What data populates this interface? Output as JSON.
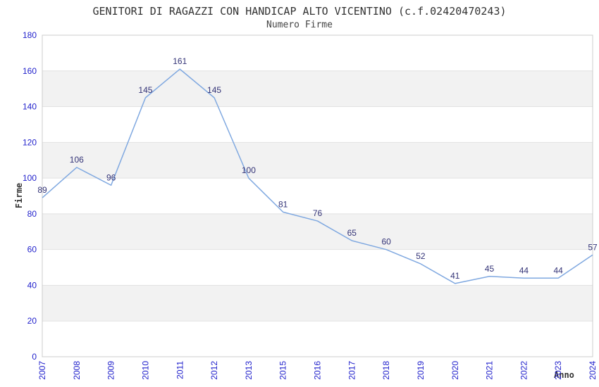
{
  "chart_data": {
    "type": "line",
    "title": "GENITORI DI RAGAZZI CON HANDICAP ALTO VICENTINO (c.f.02420470243)",
    "subtitle": "Numero Firme",
    "xlabel": "Anno",
    "ylabel": "Firme",
    "categories": [
      "2007",
      "2008",
      "2009",
      "2010",
      "2011",
      "2012",
      "2013",
      "2015",
      "2016",
      "2017",
      "2018",
      "2019",
      "2020",
      "2021",
      "2022",
      "2023",
      "2024"
    ],
    "values": [
      89,
      106,
      96,
      145,
      161,
      145,
      100,
      81,
      76,
      65,
      60,
      52,
      41,
      45,
      44,
      44,
      57
    ],
    "ylim": [
      0,
      180
    ],
    "ytick_step": 20,
    "yticks": [
      0,
      20,
      40,
      60,
      80,
      100,
      120,
      140,
      160,
      180
    ],
    "xtick_rotation": -90,
    "grid": "horizontal-alternating-bands",
    "legend": "none",
    "point_labels": true,
    "markers": "none",
    "colors": {
      "line": "#7FA8E0",
      "point_label": "#333377",
      "tick_label": "#2222CC",
      "axis_title": "#333333",
      "title_text": "#333333",
      "band_fill": "#F2F2F2",
      "grid_line": "#E2E2E2",
      "plot_border": "#CCCCCC",
      "plot_background": "#FFFFFF"
    }
  }
}
